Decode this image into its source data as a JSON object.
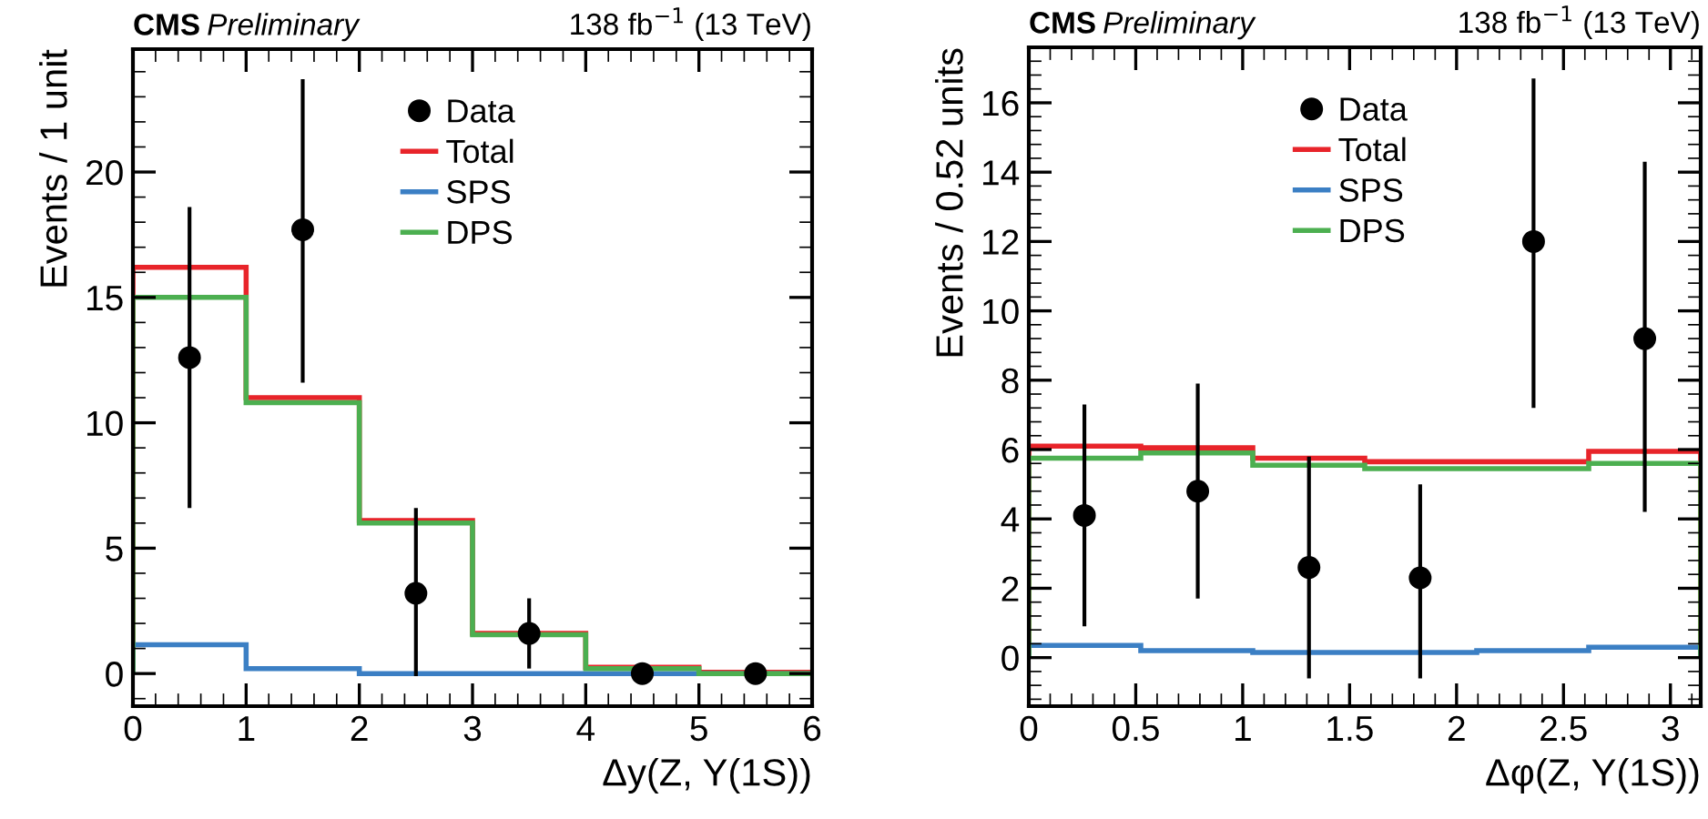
{
  "chart_data": [
    {
      "type": "histogram",
      "title": "CMS",
      "subtitle": "Preliminary",
      "annotations": [
        "138 fb$^{−1}$ (13 TeV)"
      ],
      "xlabel": "Δy(Z, Υ(1S))",
      "ylabel": "Events / 1 unit",
      "bins": [
        0,
        1,
        2,
        3,
        4,
        5,
        6
      ],
      "xlim": [
        0,
        6
      ],
      "xticks": [
        0,
        1,
        2,
        3,
        4,
        5,
        6
      ],
      "ylim": [
        -1.3,
        24.9
      ],
      "yticks": [
        0,
        5,
        10,
        15,
        20
      ],
      "grid": false,
      "legend": "top",
      "series": [
        {
          "name": "Data",
          "type": "scatter",
          "color": "#000000",
          "marker": "circle",
          "x": [
            0.5,
            1.5,
            2.5,
            3.5,
            4.5,
            5.5
          ],
          "values": [
            12.6,
            17.7,
            3.2,
            1.6,
            0,
            0
          ],
          "errors": [
            [
              6.6,
              18.6
            ],
            [
              11.6,
              23.7
            ],
            [
              -0.1,
              6.6
            ],
            [
              0.2,
              3.0
            ],
            null,
            null
          ]
        },
        {
          "name": "Total",
          "color": "#e8242a",
          "values": [
            16.2,
            11.0,
            6.1,
            1.6,
            0.25,
            0.05
          ]
        },
        {
          "name": "SPS",
          "color": "#3b7fc4",
          "values": [
            1.15,
            0.2,
            0.0,
            0.0,
            0.0,
            0.0
          ]
        },
        {
          "name": "DPS",
          "color": "#4caf50",
          "values": [
            15.0,
            10.8,
            6.0,
            1.55,
            0.2,
            0.0
          ]
        }
      ]
    },
    {
      "type": "histogram",
      "title": "CMS",
      "subtitle": "Preliminary",
      "annotations": [
        "138 fb$^{−1}$ (13 TeV)"
      ],
      "xlabel": "Δφ(Z, Υ(1S))",
      "ylabel": "Events / 0.52 units",
      "bins": [
        0,
        0.5236,
        1.0472,
        1.5708,
        2.0944,
        2.618,
        3.1416
      ],
      "xlim": [
        0,
        3.1416
      ],
      "xticks": [
        0,
        0.5,
        1,
        1.5,
        2,
        2.5,
        3
      ],
      "ylim": [
        -1.4,
        17.6
      ],
      "yticks": [
        0,
        2,
        4,
        6,
        8,
        10,
        12,
        14,
        16
      ],
      "grid": false,
      "legend": "top",
      "series": [
        {
          "name": "Data",
          "type": "scatter",
          "color": "#000000",
          "marker": "circle",
          "x": [
            0.26,
            0.79,
            1.31,
            1.83,
            2.36,
            2.88
          ],
          "values": [
            4.1,
            4.8,
            2.6,
            2.3,
            12.0,
            9.2
          ],
          "errors": [
            [
              0.9,
              7.3
            ],
            [
              1.7,
              7.9
            ],
            [
              -0.6,
              5.8
            ],
            [
              -0.6,
              5.0
            ],
            [
              7.2,
              16.7
            ],
            [
              4.2,
              14.3
            ]
          ]
        },
        {
          "name": "Total",
          "color": "#e8242a",
          "values": [
            6.1,
            6.05,
            5.75,
            5.65,
            5.65,
            5.95
          ]
        },
        {
          "name": "SPS",
          "color": "#3b7fc4",
          "values": [
            0.35,
            0.2,
            0.15,
            0.15,
            0.2,
            0.3
          ]
        },
        {
          "name": "DPS",
          "color": "#4caf50",
          "values": [
            5.75,
            5.9,
            5.55,
            5.45,
            5.45,
            5.6
          ]
        }
      ]
    }
  ]
}
